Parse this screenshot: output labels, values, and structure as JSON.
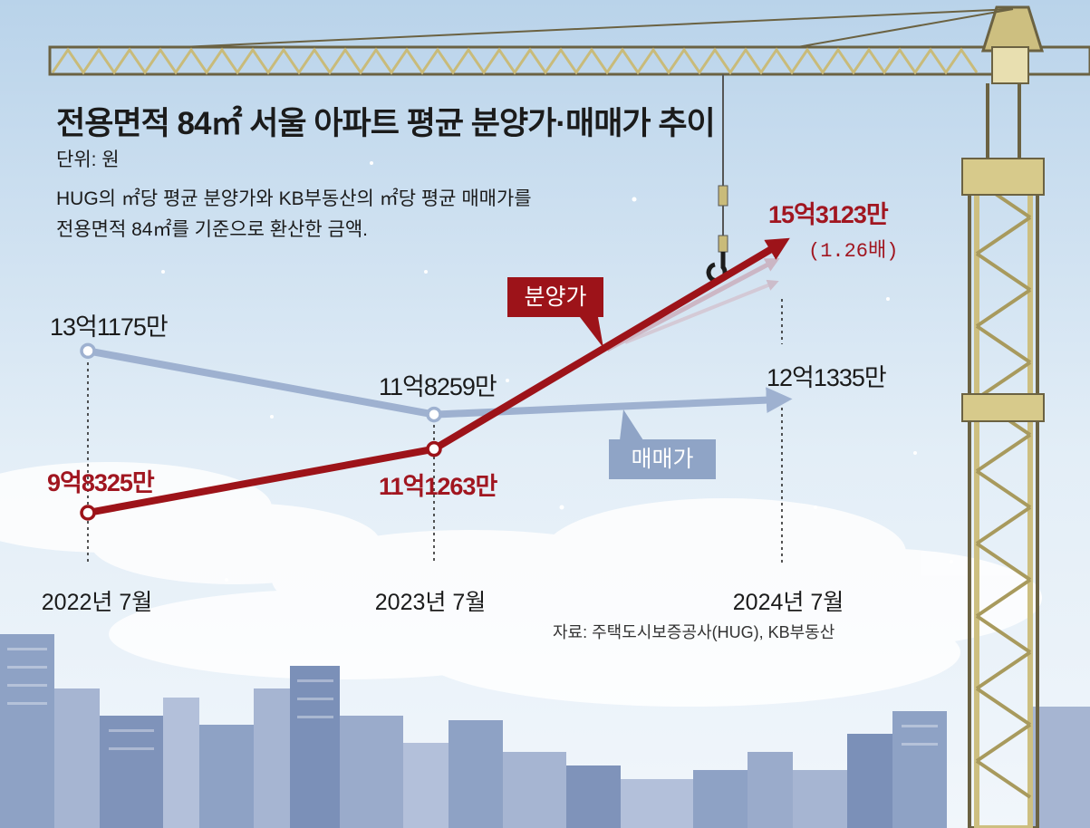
{
  "title": "전용면적 84㎡ 서울 아파트 평균 분양가·매매가 추이",
  "unit": "단위: 원",
  "description": [
    "HUG의 ㎡당 평균 분양가와 KB부동산의 ㎡당 평균 매매가를",
    "전용면적 84㎡를 기준으로 환산한 금액."
  ],
  "source": "자료: 주택도시보증공사(HUG), KB부동산",
  "colors": {
    "sale": "#9d1319",
    "market": "#9eb1d0"
  },
  "chart_data": {
    "type": "line",
    "categories": [
      "2022년 7월",
      "2023년 7월",
      "2024년 7월"
    ],
    "series": [
      {
        "name": "분양가",
        "values": [
          983250000,
          1112630000,
          1531230000
        ],
        "labels": [
          "9억8325만",
          "11억1263만",
          "15억3123만"
        ],
        "color": "#9d1319"
      },
      {
        "name": "매매가",
        "values": [
          1311750000,
          1182590000,
          1213350000
        ],
        "labels": [
          "13억1175만",
          "11억8259만",
          "12억1335만"
        ],
        "color": "#9eb1d0"
      }
    ],
    "annotations": [
      "(1.26배)"
    ],
    "ylabel": "",
    "legend": "inline tags"
  }
}
